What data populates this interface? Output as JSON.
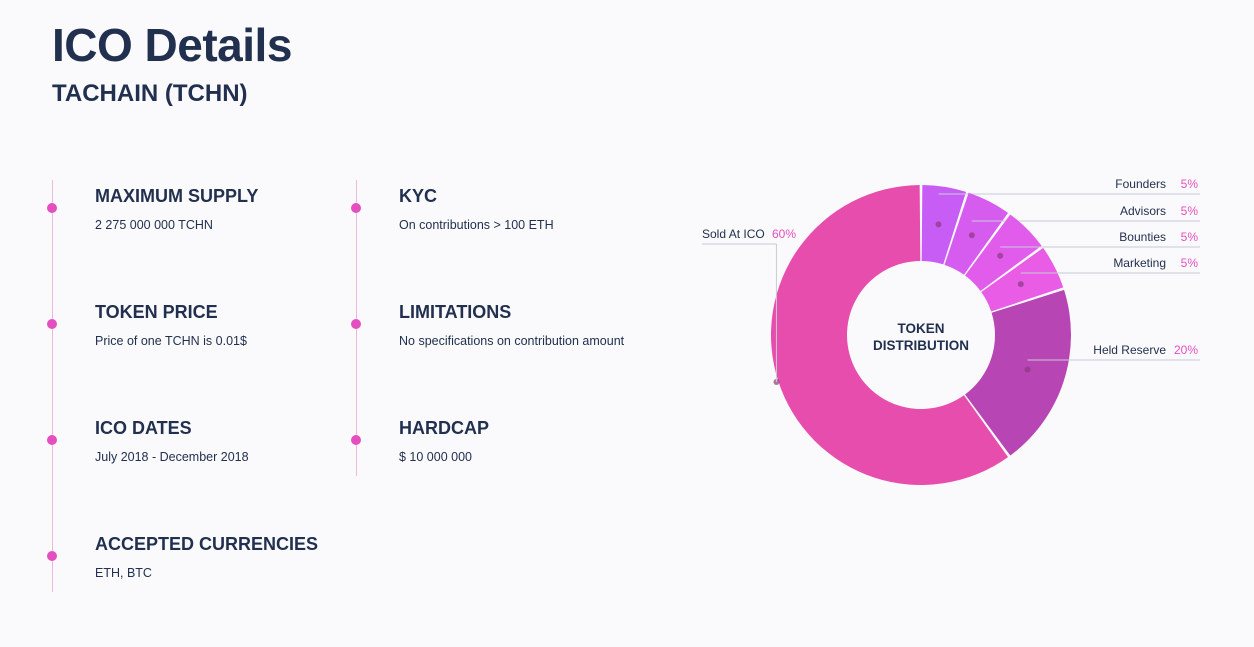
{
  "header": {
    "title": "ICO Details",
    "subtitle": "TACHAIN (TCHN)"
  },
  "details": {
    "left": [
      {
        "label": "MAXIMUM SUPPLY",
        "value": "2 275 000 000 TCHN"
      },
      {
        "label": "TOKEN PRICE",
        "value": "Price of one TCHN is 0.01$"
      },
      {
        "label": "ICO DATES",
        "value": "July 2018 - December 2018"
      },
      {
        "label": "ACCEPTED CURRENCIES",
        "value": "ETH, BTC"
      }
    ],
    "right": [
      {
        "label": "KYC",
        "value": "On contributions > 100 ETH"
      },
      {
        "label": "LIMITATIONS",
        "value": "No specifications on contribution amount"
      },
      {
        "label": "HARDCAP",
        "value": "$ 10 000 000"
      }
    ]
  },
  "colors": {
    "accent": "#e44fbf",
    "text": "#22304f"
  },
  "chart_data": {
    "type": "pie",
    "title": "TOKEN DISTRIBUTION",
    "center_lines": [
      "TOKEN",
      "DISTRIBUTION"
    ],
    "donut": true,
    "categories": [
      "Founders",
      "Advisors",
      "Bounties",
      "Marketing",
      "Held Reserve",
      "Sold At ICO"
    ],
    "values": [
      5,
      5,
      5,
      5,
      20,
      60
    ],
    "value_labels": [
      "5%",
      "5%",
      "5%",
      "5%",
      "20%",
      "60%"
    ],
    "colors": [
      "#c75df5",
      "#d65cf0",
      "#e25cec",
      "#e85ce6",
      "#b845b4",
      "#e64dad"
    ]
  }
}
